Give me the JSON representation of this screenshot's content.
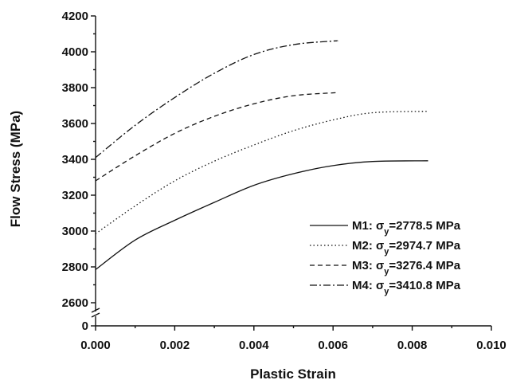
{
  "chart_data": {
    "type": "line",
    "xlabel": "Plastic Strain",
    "ylabel": "Flow Stress (MPa)",
    "xlim": [
      0.0,
      0.01
    ],
    "ylim": [
      2500,
      4200
    ],
    "y_axis_break": {
      "from": 0,
      "to": 2500
    },
    "x_ticks": [
      "0.000",
      "0.002",
      "0.004",
      "0.006",
      "0.008",
      "0.010"
    ],
    "y_ticks": [
      "0",
      "2600",
      "2800",
      "3000",
      "3200",
      "3400",
      "3600",
      "3800",
      "4000",
      "4200"
    ],
    "grid": false,
    "legend_position": "bottom-right",
    "series": [
      {
        "name": "M1",
        "legend_prefix": "M1: σ",
        "legend_sub": "y",
        "legend_suffix": "=2778.5 MPa",
        "line_style": "solid",
        "x": [
          0.0,
          0.001,
          0.002,
          0.003,
          0.004,
          0.005,
          0.006,
          0.007,
          0.0084
        ],
        "y": [
          2785,
          2950,
          3060,
          3160,
          3255,
          3320,
          3365,
          3388,
          3392
        ]
      },
      {
        "name": "M2",
        "legend_prefix": "M2: σ",
        "legend_sub": "y",
        "legend_suffix": "=2974.7 MPa",
        "line_style": "dotted",
        "x": [
          0.0,
          0.001,
          0.002,
          0.003,
          0.004,
          0.005,
          0.006,
          0.007,
          0.0084
        ],
        "y": [
          2985,
          3140,
          3280,
          3390,
          3480,
          3560,
          3620,
          3660,
          3668
        ]
      },
      {
        "name": "M3",
        "legend_prefix": "M3: σ",
        "legend_sub": "y",
        "legend_suffix": "=3276.4 MPa",
        "line_style": "dashed",
        "x": [
          0.0,
          0.001,
          0.002,
          0.003,
          0.004,
          0.005,
          0.0061
        ],
        "y": [
          3280,
          3420,
          3545,
          3640,
          3710,
          3755,
          3772
        ]
      },
      {
        "name": "M4",
        "legend_prefix": "M4: σ",
        "legend_sub": "y",
        "legend_suffix": "=3410.8 MPa",
        "line_style": "dashdot",
        "x": [
          0.0,
          0.001,
          0.002,
          0.003,
          0.004,
          0.005,
          0.006,
          0.0061
        ],
        "y": [
          3410,
          3590,
          3745,
          3880,
          3985,
          4040,
          4060,
          4060
        ]
      }
    ]
  }
}
